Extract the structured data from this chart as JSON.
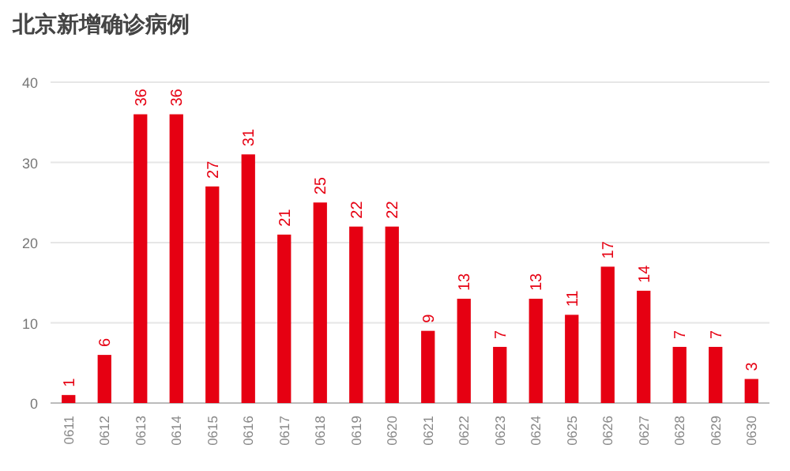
{
  "chart_data": {
    "type": "bar",
    "title": "北京新增确诊病例",
    "categories": [
      "0611",
      "0612",
      "0613",
      "0614",
      "0615",
      "0616",
      "0617",
      "0618",
      "0619",
      "0620",
      "0621",
      "0622",
      "0623",
      "0624",
      "0625",
      "0626",
      "0627",
      "0628",
      "0629",
      "0630"
    ],
    "values": [
      1,
      6,
      36,
      36,
      27,
      31,
      21,
      25,
      22,
      22,
      9,
      13,
      7,
      13,
      11,
      17,
      14,
      7,
      7,
      3
    ],
    "color": "#e60012",
    "ylim": [
      0,
      40
    ],
    "yticks": [
      0,
      10,
      20,
      30,
      40
    ],
    "grid": "y",
    "data_labels": true
  }
}
